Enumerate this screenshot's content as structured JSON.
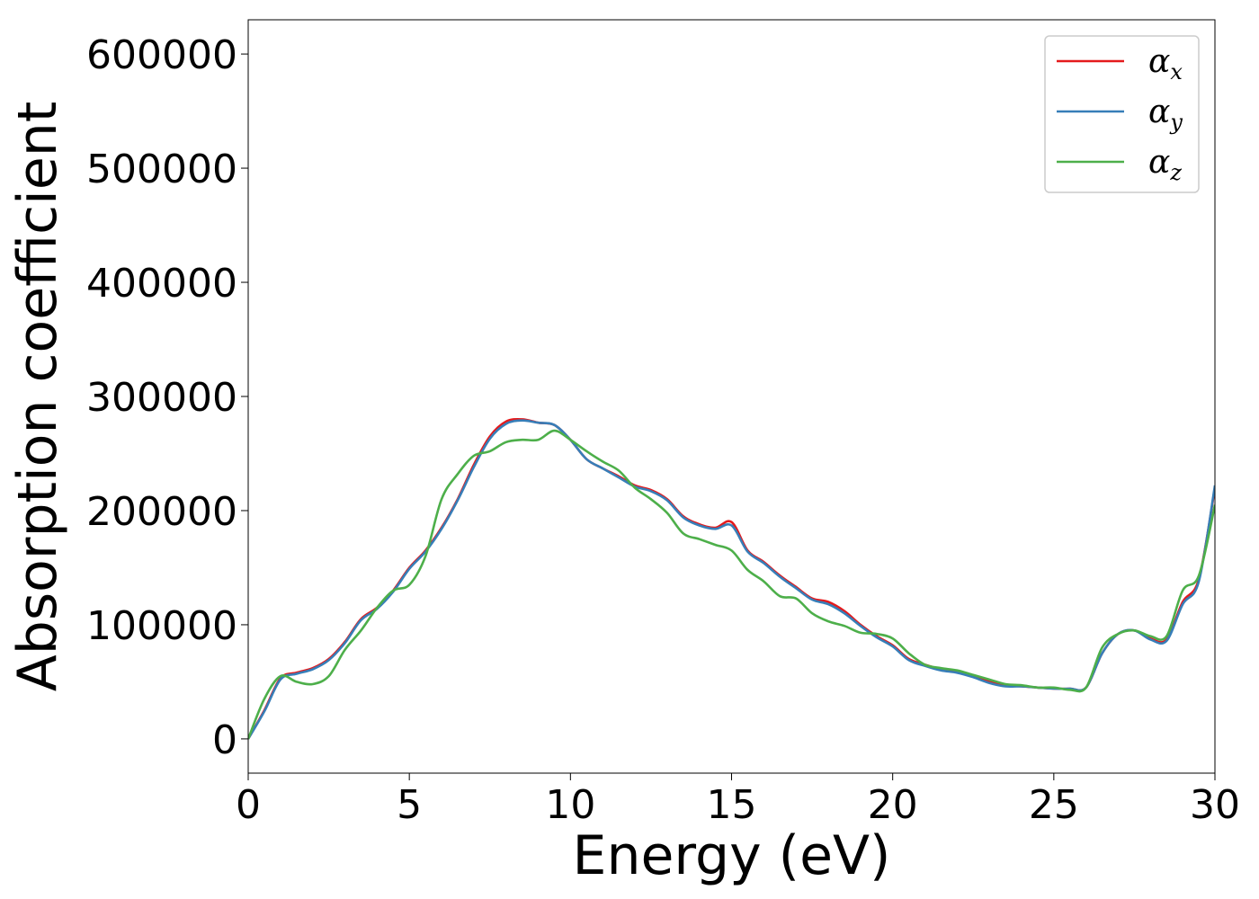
{
  "chart_data": {
    "type": "line",
    "title": "",
    "xlabel": "Energy (eV)",
    "ylabel": "Absorption coefficient",
    "xlim": [
      0,
      30
    ],
    "ylim": [
      -30000,
      630000
    ],
    "xticks": [
      0,
      5,
      10,
      15,
      20,
      25,
      30
    ],
    "yticks": [
      0,
      100000,
      200000,
      300000,
      400000,
      500000,
      600000
    ],
    "grid": false,
    "legend": "top-right",
    "series": [
      {
        "name": "αx",
        "symbol": "α",
        "subscript": "x",
        "color": "#e41a1c",
        "points": [
          [
            0,
            0
          ],
          [
            0.5,
            25000
          ],
          [
            1,
            53000
          ],
          [
            1.5,
            58000
          ],
          [
            2,
            62000
          ],
          [
            2.5,
            70000
          ],
          [
            3,
            85000
          ],
          [
            3.5,
            105000
          ],
          [
            4,
            115000
          ],
          [
            4.5,
            130000
          ],
          [
            5,
            150000
          ],
          [
            5.5,
            165000
          ],
          [
            6,
            185000
          ],
          [
            6.5,
            210000
          ],
          [
            7,
            240000
          ],
          [
            7.5,
            265000
          ],
          [
            8,
            278000
          ],
          [
            8.5,
            280000
          ],
          [
            9,
            277000
          ],
          [
            9.5,
            275000
          ],
          [
            10,
            262000
          ],
          [
            10.5,
            245000
          ],
          [
            11,
            237000
          ],
          [
            11.5,
            230000
          ],
          [
            12,
            222000
          ],
          [
            12.5,
            218000
          ],
          [
            13,
            210000
          ],
          [
            13.5,
            195000
          ],
          [
            14,
            188000
          ],
          [
            14.5,
            185000
          ],
          [
            15,
            190000
          ],
          [
            15.5,
            165000
          ],
          [
            16,
            155000
          ],
          [
            16.5,
            143000
          ],
          [
            17,
            133000
          ],
          [
            17.5,
            123000
          ],
          [
            18,
            120000
          ],
          [
            18.5,
            112000
          ],
          [
            19,
            100000
          ],
          [
            19.5,
            90000
          ],
          [
            20,
            82000
          ],
          [
            20.5,
            70000
          ],
          [
            21,
            65000
          ],
          [
            21.5,
            61000
          ],
          [
            22,
            59000
          ],
          [
            22.5,
            55000
          ],
          [
            23,
            50000
          ],
          [
            23.5,
            47000
          ],
          [
            24,
            46000
          ],
          [
            24.5,
            45000
          ],
          [
            25,
            44000
          ],
          [
            25.5,
            44000
          ],
          [
            26,
            45000
          ],
          [
            26.5,
            75000
          ],
          [
            27,
            92000
          ],
          [
            27.5,
            95000
          ],
          [
            28,
            88000
          ],
          [
            28.5,
            87000
          ],
          [
            29,
            120000
          ],
          [
            29.5,
            140000
          ],
          [
            30,
            220000
          ]
        ]
      },
      {
        "name": "αy",
        "symbol": "α",
        "subscript": "y",
        "color": "#377eb8",
        "points": [
          [
            0,
            0
          ],
          [
            0.5,
            24000
          ],
          [
            1,
            52000
          ],
          [
            1.5,
            57000
          ],
          [
            2,
            61000
          ],
          [
            2.5,
            69000
          ],
          [
            3,
            84000
          ],
          [
            3.5,
            104000
          ],
          [
            4,
            114000
          ],
          [
            4.5,
            129000
          ],
          [
            5,
            149000
          ],
          [
            5.5,
            164000
          ],
          [
            6,
            184000
          ],
          [
            6.5,
            209000
          ],
          [
            7,
            238000
          ],
          [
            7.5,
            263000
          ],
          [
            8,
            276000
          ],
          [
            8.5,
            279000
          ],
          [
            9,
            277000
          ],
          [
            9.5,
            275000
          ],
          [
            10,
            262000
          ],
          [
            10.5,
            245000
          ],
          [
            11,
            237000
          ],
          [
            11.5,
            229000
          ],
          [
            12,
            221000
          ],
          [
            12.5,
            217000
          ],
          [
            13,
            209000
          ],
          [
            13.5,
            194000
          ],
          [
            14,
            187000
          ],
          [
            14.5,
            184000
          ],
          [
            15,
            187000
          ],
          [
            15.5,
            164000
          ],
          [
            16,
            154000
          ],
          [
            16.5,
            142000
          ],
          [
            17,
            132000
          ],
          [
            17.5,
            122000
          ],
          [
            18,
            118000
          ],
          [
            18.5,
            110000
          ],
          [
            19,
            99000
          ],
          [
            19.5,
            89000
          ],
          [
            20,
            81000
          ],
          [
            20.5,
            69000
          ],
          [
            21,
            64000
          ],
          [
            21.5,
            60000
          ],
          [
            22,
            58000
          ],
          [
            22.5,
            54000
          ],
          [
            23,
            49000
          ],
          [
            23.5,
            46000
          ],
          [
            24,
            46000
          ],
          [
            24.5,
            45000
          ],
          [
            25,
            44000
          ],
          [
            25.5,
            44000
          ],
          [
            26,
            45000
          ],
          [
            26.5,
            75000
          ],
          [
            27,
            92000
          ],
          [
            27.5,
            95000
          ],
          [
            28,
            87000
          ],
          [
            28.5,
            86000
          ],
          [
            29,
            118000
          ],
          [
            29.5,
            138000
          ],
          [
            30,
            222000
          ]
        ]
      },
      {
        "name": "αz",
        "symbol": "α",
        "subscript": "z",
        "color": "#4daf4a",
        "points": [
          [
            0,
            0
          ],
          [
            0.5,
            35000
          ],
          [
            1,
            55000
          ],
          [
            1.5,
            50000
          ],
          [
            2,
            48000
          ],
          [
            2.5,
            55000
          ],
          [
            3,
            78000
          ],
          [
            3.5,
            95000
          ],
          [
            4,
            115000
          ],
          [
            4.5,
            130000
          ],
          [
            5,
            135000
          ],
          [
            5.5,
            160000
          ],
          [
            6,
            210000
          ],
          [
            6.5,
            232000
          ],
          [
            7,
            248000
          ],
          [
            7.5,
            252000
          ],
          [
            8,
            260000
          ],
          [
            8.5,
            262000
          ],
          [
            9,
            262000
          ],
          [
            9.5,
            270000
          ],
          [
            10,
            262000
          ],
          [
            10.5,
            252000
          ],
          [
            11,
            243000
          ],
          [
            11.5,
            235000
          ],
          [
            12,
            220000
          ],
          [
            12.5,
            210000
          ],
          [
            13,
            198000
          ],
          [
            13.5,
            180000
          ],
          [
            14,
            175000
          ],
          [
            14.5,
            170000
          ],
          [
            15,
            165000
          ],
          [
            15.5,
            148000
          ],
          [
            16,
            138000
          ],
          [
            16.5,
            125000
          ],
          [
            17,
            123000
          ],
          [
            17.5,
            110000
          ],
          [
            18,
            103000
          ],
          [
            18.5,
            99000
          ],
          [
            19,
            93000
          ],
          [
            19.5,
            92000
          ],
          [
            20,
            88000
          ],
          [
            20.5,
            75000
          ],
          [
            21,
            65000
          ],
          [
            21.5,
            62000
          ],
          [
            22,
            60000
          ],
          [
            22.5,
            56000
          ],
          [
            23,
            52000
          ],
          [
            23.5,
            48000
          ],
          [
            24,
            47000
          ],
          [
            24.5,
            45000
          ],
          [
            25,
            45000
          ],
          [
            25.5,
            43000
          ],
          [
            26,
            45000
          ],
          [
            26.5,
            80000
          ],
          [
            27,
            92000
          ],
          [
            27.5,
            95000
          ],
          [
            28,
            90000
          ],
          [
            28.5,
            90000
          ],
          [
            29,
            130000
          ],
          [
            29.5,
            143000
          ],
          [
            30,
            205000
          ]
        ]
      }
    ]
  }
}
